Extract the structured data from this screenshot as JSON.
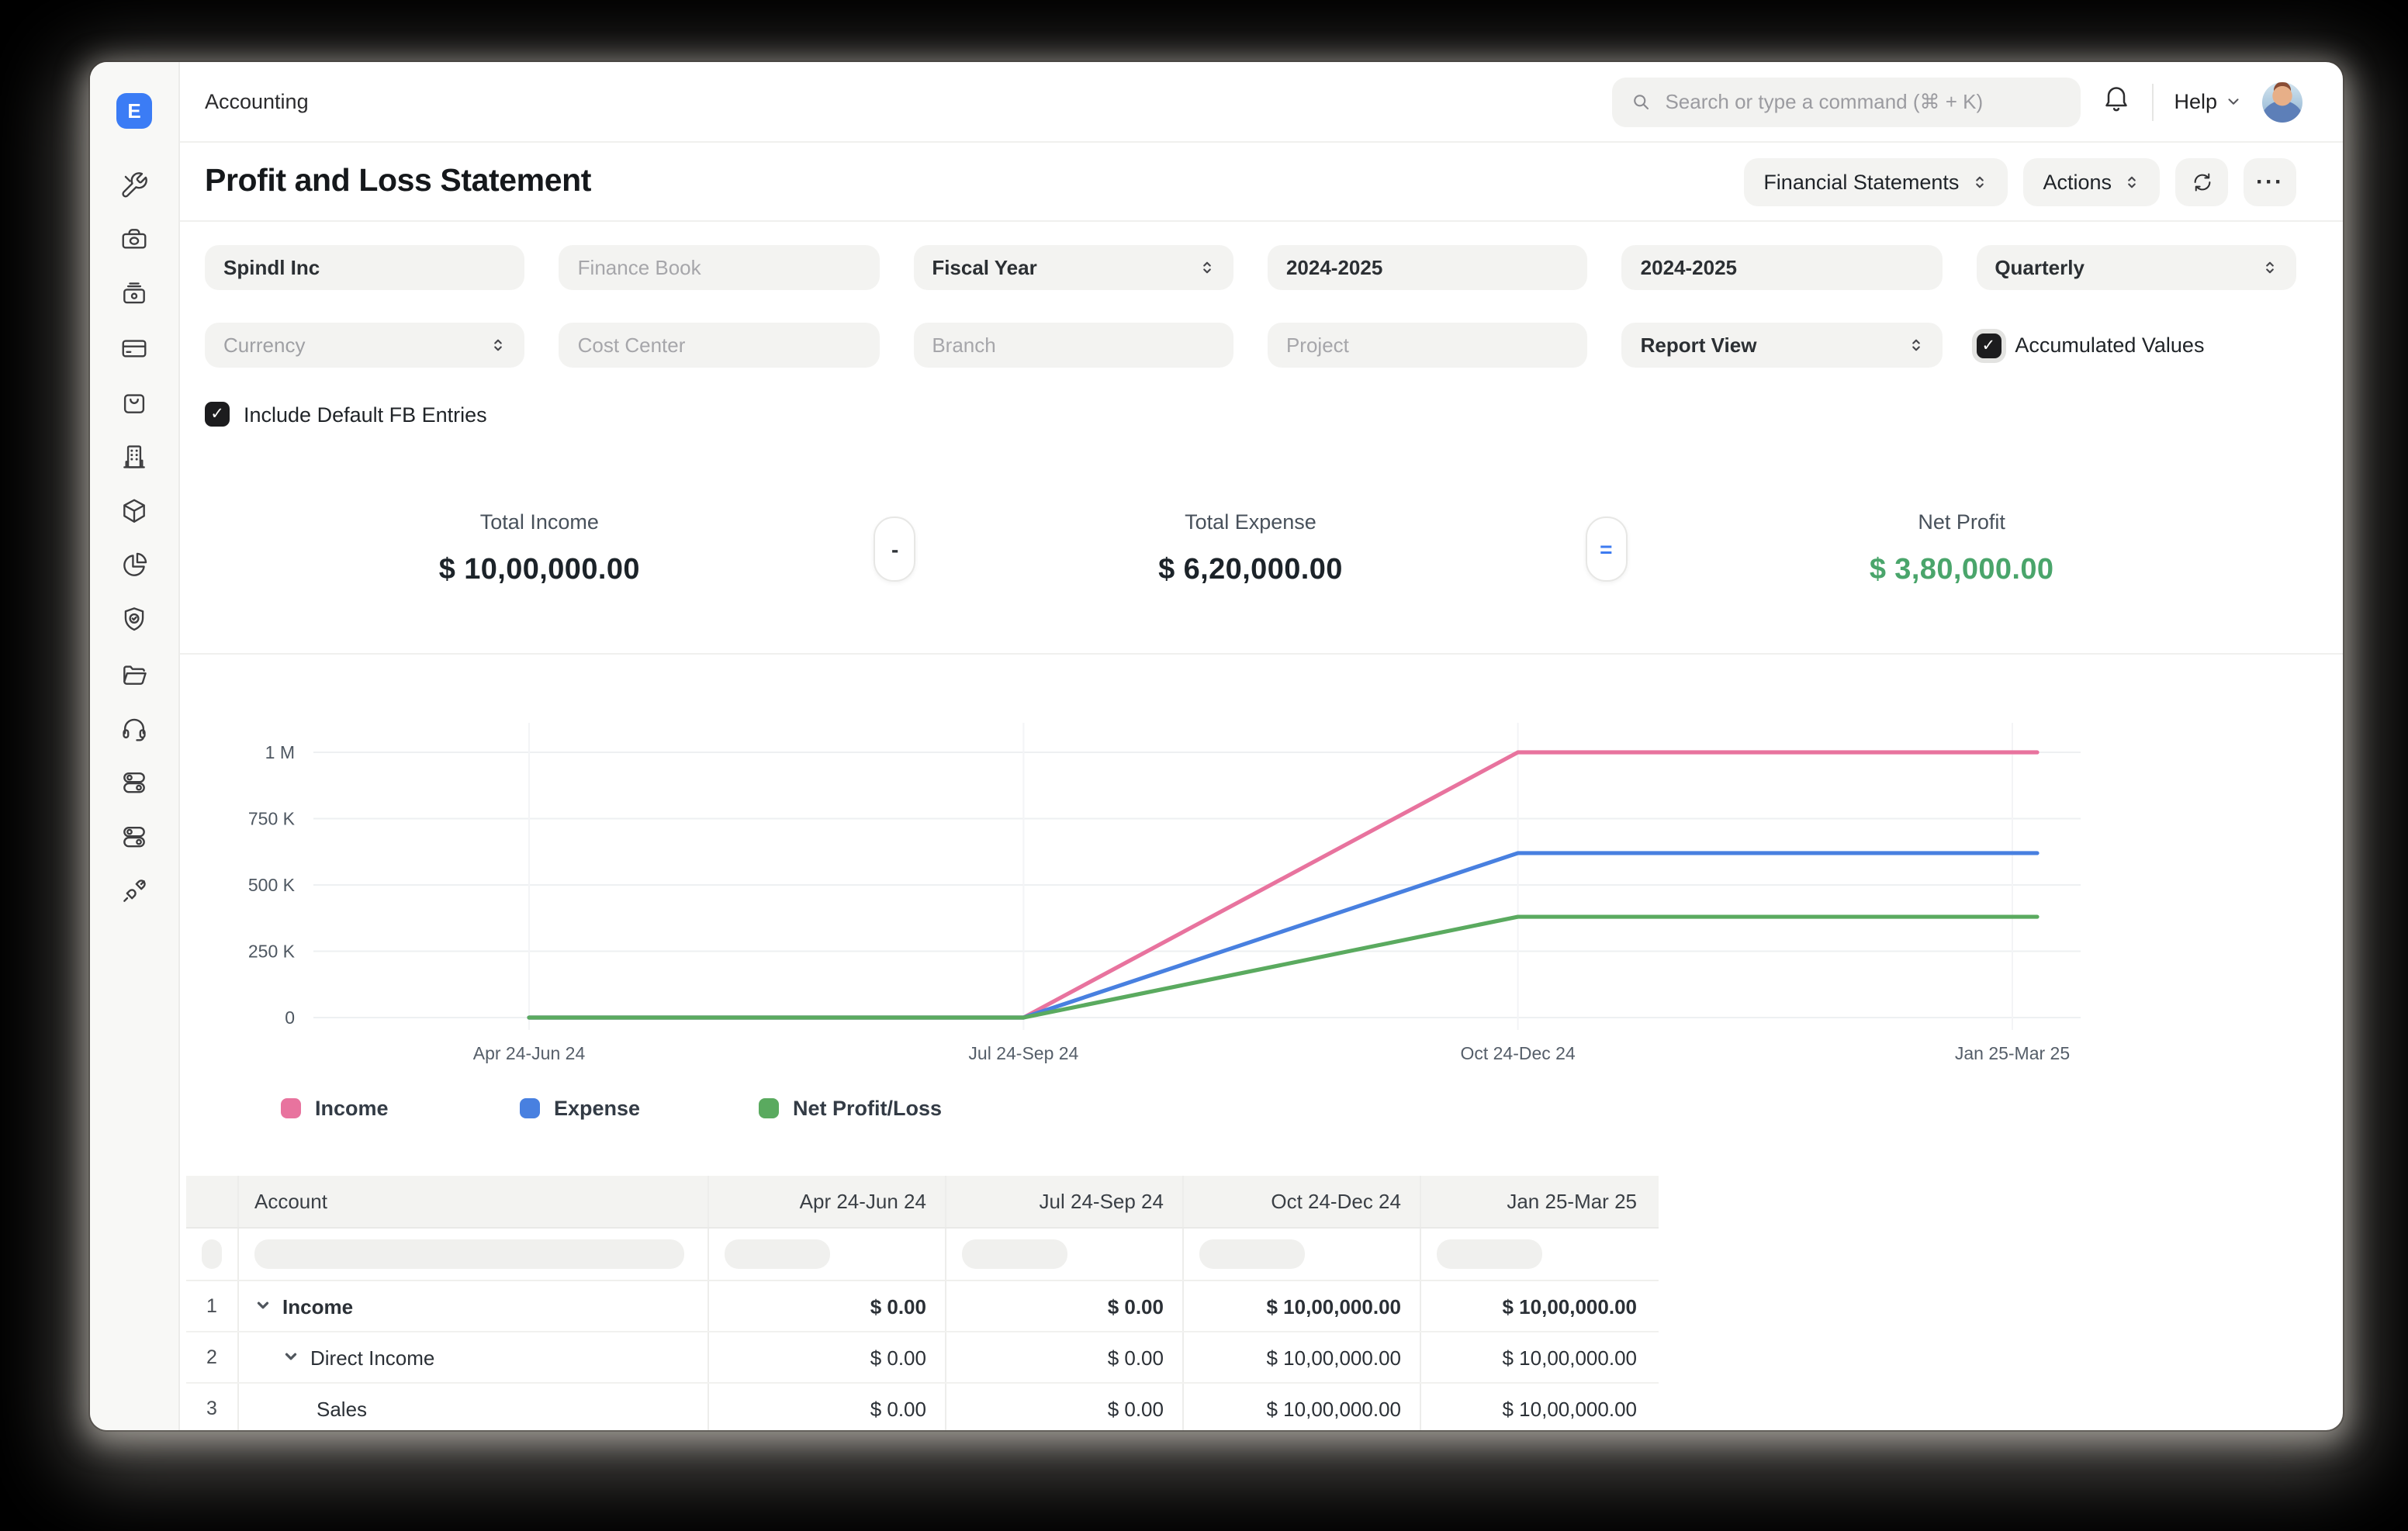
{
  "topbar": {
    "breadcrumb": "Accounting",
    "search_placeholder": "Search or type a command (⌘ + K)",
    "help_label": "Help"
  },
  "sidebar_icons": [
    "tools",
    "money",
    "cash-register",
    "credit-card",
    "shopping-bag",
    "building",
    "package",
    "pie-chart",
    "shield-check",
    "folder",
    "headset",
    "toggle-switches",
    "toggle-switches",
    "plug"
  ],
  "page": {
    "title": "Profit and Loss Statement",
    "financial_statements_button": "Financial Statements",
    "actions_button": "Actions",
    "more_button": "···"
  },
  "filters": {
    "company": "Spindl Inc",
    "finance_book_placeholder": "Finance Book",
    "period_basis": "Fiscal Year",
    "from_year": "2024-2025",
    "to_year": "2024-2025",
    "periodicity": "Quarterly",
    "currency": "Currency",
    "cost_center_placeholder": "Cost Center",
    "branch_placeholder": "Branch",
    "project_placeholder": "Project",
    "report_view": "Report View",
    "accumulated_values_label": "Accumulated Values",
    "include_default_fb_label": "Include Default FB Entries"
  },
  "summary": {
    "income_label": "Total Income",
    "income_value": "$ 10,00,000.00",
    "minus": "-",
    "expense_label": "Total Expense",
    "expense_value": "$ 6,20,000.00",
    "equals": "=",
    "net_profit_label": "Net Profit",
    "net_profit_value": "$ 3,80,000.00",
    "net_profit_color": "#4aa56b"
  },
  "chart_data": {
    "type": "line",
    "title": "",
    "categories": [
      "Apr 24-Jun 24",
      "Jul 24-Sep 24",
      "Oct 24-Dec 24",
      "Jan 25-Mar 25"
    ],
    "series": [
      {
        "name": "Income",
        "color": "#E8739E",
        "values": [
          0,
          0,
          1000000,
          1000000
        ]
      },
      {
        "name": "Expense",
        "color": "#4880E0",
        "values": [
          0,
          0,
          620000,
          620000
        ]
      },
      {
        "name": "Net Profit/Loss",
        "color": "#5AAA5F",
        "values": [
          0,
          0,
          380000,
          380000
        ]
      }
    ],
    "xlabel": "",
    "ylabel": "",
    "ylim": [
      0,
      1000000
    ],
    "yticks": [
      {
        "value": 0,
        "label": "0"
      },
      {
        "value": 250000,
        "label": "250 K"
      },
      {
        "value": 500000,
        "label": "500 K"
      },
      {
        "value": 750000,
        "label": "750 K"
      },
      {
        "value": 1000000,
        "label": "1 M"
      }
    ],
    "grid": true,
    "legend_position": "bottom"
  },
  "table": {
    "columns": [
      "Account",
      "Apr 24-Jun 24",
      "Jul 24-Sep 24",
      "Oct 24-Dec 24",
      "Jan 25-Mar 25"
    ],
    "rows": [
      {
        "num": "1",
        "account": "Income",
        "values": [
          "$ 0.00",
          "$ 0.00",
          "$ 10,00,000.00",
          "$ 10,00,000.00"
        ]
      },
      {
        "num": "2",
        "account": "Direct Income",
        "values": [
          "$ 0.00",
          "$ 0.00",
          "$ 10,00,000.00",
          "$ 10,00,000.00"
        ]
      },
      {
        "num": "3",
        "account": "Sales",
        "values": [
          "$ 0.00",
          "$ 0.00",
          "$ 10,00,000.00",
          "$ 10,00,000.00"
        ]
      }
    ]
  }
}
